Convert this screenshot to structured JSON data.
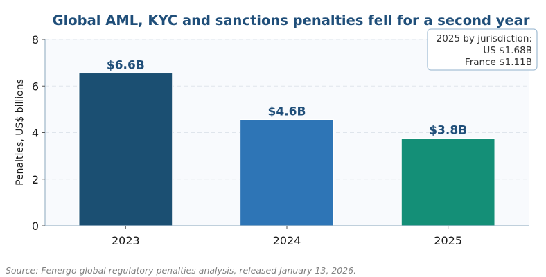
{
  "chart_data": {
    "type": "bar",
    "title": "Global AML, KYC and sanctions penalties fell for a second year",
    "xlabel": "",
    "ylabel": "Penalties, US$ billions",
    "categories": [
      "2023",
      "2024",
      "2025"
    ],
    "values": [
      6.56,
      4.56,
      3.76
    ],
    "value_labels": [
      "$6.6B",
      "$4.6B",
      "$3.8B"
    ],
    "colors": [
      "#1b4f72",
      "#2e75b6",
      "#148f77"
    ],
    "ylim": [
      0,
      8
    ],
    "yticks": [
      "0",
      "2",
      "4",
      "6",
      "8"
    ],
    "grid": true,
    "annotation": {
      "lines": [
        "2025 by jurisdiction:",
        "US $1.68B",
        "France $1.11B"
      ],
      "placement": "top-right"
    },
    "source": "Source: Fenergo global regulatory penalties analysis, released January 13, 2026."
  }
}
